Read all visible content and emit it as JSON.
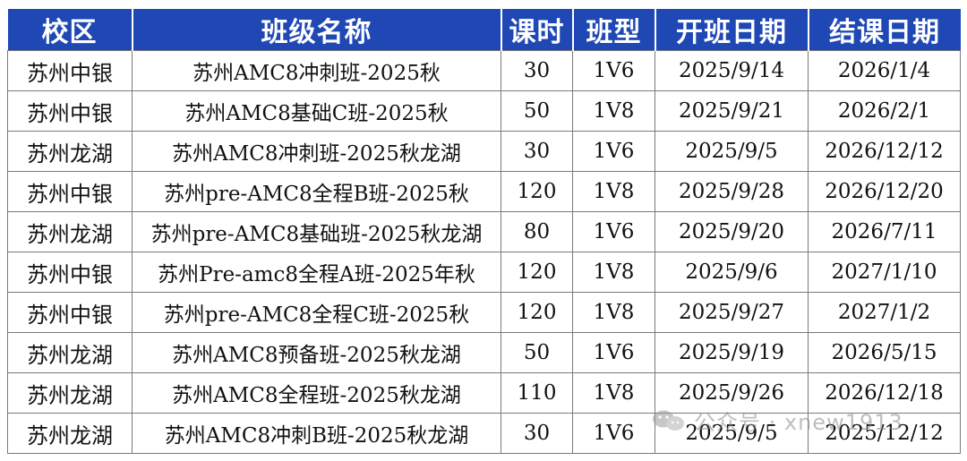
{
  "table": {
    "headers": [
      "校区",
      "班级名称",
      "课时",
      "班型",
      "开班日期",
      "结课日期"
    ],
    "rows": [
      [
        "苏州中银",
        "苏州AMC8冲刺班-2025秋",
        "30",
        "1V6",
        "2025/9/14",
        "2026/1/4"
      ],
      [
        "苏州中银",
        "苏州AMC8基础C班-2025秋",
        "50",
        "1V8",
        "2025/9/21",
        "2026/2/1"
      ],
      [
        "苏州龙湖",
        "苏州AMC8冲刺班-2025秋龙湖",
        "30",
        "1V6",
        "2025/9/5",
        "2026/12/12"
      ],
      [
        "苏州中银",
        "苏州pre-AMC8全程B班-2025秋",
        "120",
        "1V8",
        "2025/9/28",
        "2026/12/20"
      ],
      [
        "苏州龙湖",
        "苏州pre-AMC8基础班-2025秋龙湖",
        "80",
        "1V6",
        "2025/9/20",
        "2026/7/11"
      ],
      [
        "苏州中银",
        "苏州Pre-amc8全程A班-2025年秋",
        "120",
        "1V8",
        "2025/9/6",
        "2027/1/10"
      ],
      [
        "苏州中银",
        "苏州pre-AMC8全程C班-2025秋",
        "120",
        "1V8",
        "2025/9/27",
        "2027/1/2"
      ],
      [
        "苏州龙湖",
        "苏州AMC8预备班-2025秋龙湖",
        "50",
        "1V6",
        "2025/9/19",
        "2026/5/15"
      ],
      [
        "苏州龙湖",
        "苏州AMC8全程班-2025秋龙湖",
        "110",
        "1V8",
        "2025/9/26",
        "2026/12/18"
      ],
      [
        "苏州龙湖",
        "苏州AMC8冲刺B班-2025秋龙湖",
        "30",
        "1V6",
        "2025/9/5",
        "2025/12/12"
      ]
    ]
  },
  "watermark": {
    "text": "公众号 · xnew1913",
    "icon": "wechat-icon"
  },
  "colors": {
    "header_bg": "#1f48b5",
    "header_text": "#ffffff",
    "grid": "#7a7a7a"
  }
}
